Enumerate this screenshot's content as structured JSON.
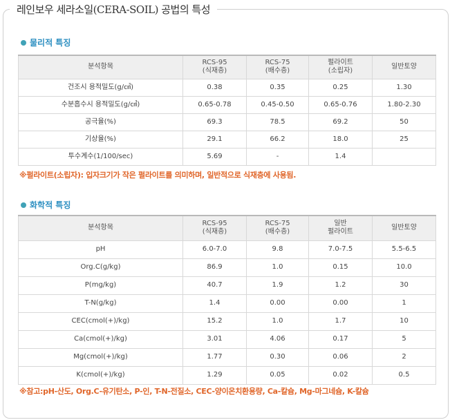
{
  "page": {
    "title": "레인보우 세라소일(CERA-SOIL) 공법의 특성"
  },
  "physical": {
    "heading": "물리적 특징",
    "columns": [
      "분석항목",
      "RCS-95\n(식재층)",
      "RCS-75\n(배수층)",
      "펄라이트\n(소립자)",
      "일반토양"
    ],
    "rows": [
      [
        "건조시 용적밀도(g/㎤)",
        "0.38",
        "0.35",
        "0.25",
        "1.30"
      ],
      [
        "수분흡수시 용적밀도(g/㎤)",
        "0.65-0.78",
        "0.45-0.50",
        "0.65-0.76",
        "1.80-2.30"
      ],
      [
        "공극율(%)",
        "69.3",
        "78.5",
        "69.2",
        "50"
      ],
      [
        "기상율(%)",
        "29.1",
        "66.2",
        "18.0",
        "25"
      ],
      [
        "투수계수(1/100/sec)",
        "5.69",
        "-",
        "1.4",
        ""
      ]
    ],
    "note": "※펄라이트(소립자): 입자크기가 작은 펄라이트를 의미하며, 일반적으로 식재층에 사용됨."
  },
  "chemical": {
    "heading": "화학적 특징",
    "columns": [
      "분석항목",
      "RCS-95\n(식재층)",
      "RCS-75\n(배수층)",
      "일반\n펄라이트",
      "일반토양"
    ],
    "rows": [
      [
        "pH",
        "6.0-7.0",
        "9.8",
        "7.0-7.5",
        "5.5-6.5"
      ],
      [
        "Org.C(g/kg)",
        "86.9",
        "1.0",
        "0.15",
        "10.0"
      ],
      [
        "P(mg/kg)",
        "40.7",
        "1.9",
        "1.2",
        "30"
      ],
      [
        "T-N(g/kg)",
        "1.4",
        "0.00",
        "0.00",
        "1"
      ],
      [
        "CEC(cmol(+)/kg)",
        "15.2",
        "1.0",
        "1.7",
        "10"
      ],
      [
        "Ca(cmol(+)/kg)",
        "3.01",
        "4.06",
        "0.17",
        "5"
      ],
      [
        "Mg(cmol(+)/kg)",
        "1.77",
        "0.30",
        "0.06",
        "2"
      ],
      [
        "K(cmol(+)/kg)",
        "1.29",
        "0.05",
        "0.02",
        "0.5"
      ]
    ],
    "note": "※참고:pH-산도, Org.C-유기탄소, P-인, T-N-전질소, CEC-양이온치환용량, Ca-칼슘, Mg-마그네슘, K-칼슘"
  }
}
